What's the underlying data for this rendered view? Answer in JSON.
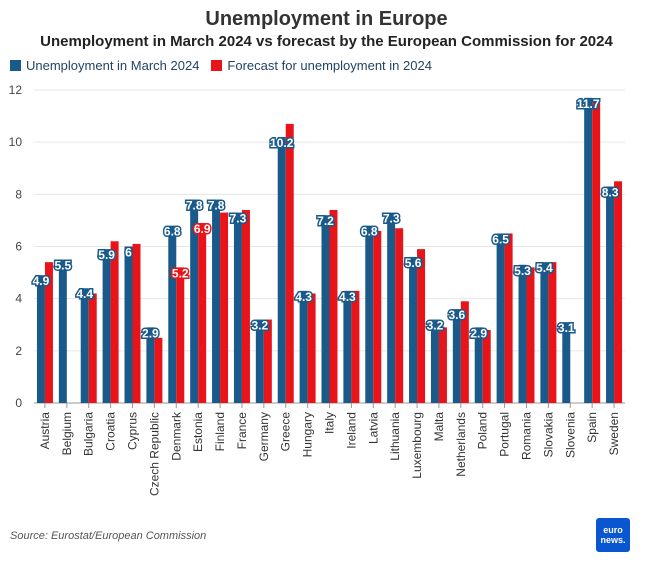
{
  "header": {
    "title": "Unemployment in Europe",
    "subtitle": "Unemployment in March 2024 vs forecast by the European Commission for 2024"
  },
  "source": "Source: Eurostat/European Commission",
  "logo": {
    "line1": "euro",
    "line2": "news."
  },
  "colors": {
    "march": "#1a5a8a",
    "forecast": "#e8141a",
    "grid": "#e6e6e6",
    "axis": "#999999"
  },
  "chart_data": {
    "type": "bar",
    "categories": [
      "Austria",
      "Belgium",
      "Bulgaria",
      "Croatia",
      "Cyprus",
      "Czech Republic",
      "Denmark",
      "Estonia",
      "Finland",
      "France",
      "Germany",
      "Greece",
      "Hungary",
      "Italy",
      "Ireland",
      "Latvia",
      "Lithuania",
      "Luxembourg",
      "Malta",
      "Netherlands",
      "Poland",
      "Portugal",
      "Romania",
      "Slovakia",
      "Slovenia",
      "Spain",
      "Sweden"
    ],
    "series": [
      {
        "name": "Unemployment in March 2024",
        "values": [
          4.9,
          5.5,
          4.4,
          5.9,
          6,
          2.9,
          6.8,
          7.8,
          7.8,
          7.3,
          3.2,
          10.2,
          4.3,
          7.2,
          4.3,
          6.8,
          7.3,
          5.6,
          3.2,
          3.6,
          2.9,
          6.5,
          5.3,
          5.4,
          3.1,
          11.7,
          8.3
        ]
      },
      {
        "name": "Forecast for unemployment in 2024",
        "values": [
          5.4,
          null,
          4.2,
          6.2,
          6.1,
          2.5,
          5.2,
          6.9,
          7.3,
          7.4,
          3.2,
          10.7,
          4.2,
          7.4,
          4.3,
          6.6,
          6.7,
          5.9,
          2.9,
          3.9,
          2.8,
          6.5,
          5.2,
          5.4,
          null,
          11.6,
          8.5
        ]
      }
    ],
    "labels": [
      {
        "index": 0,
        "series": 0,
        "text": "4.9"
      },
      {
        "index": 1,
        "series": 0,
        "text": "5.5"
      },
      {
        "index": 2,
        "series": 0,
        "text": "4.4"
      },
      {
        "index": 3,
        "series": 0,
        "text": "5.9"
      },
      {
        "index": 4,
        "series": 0,
        "text": "6"
      },
      {
        "index": 5,
        "series": 0,
        "text": "2.9"
      },
      {
        "index": 6,
        "series": 0,
        "text": "6.8"
      },
      {
        "index": 6,
        "series": 1,
        "text": "5.2"
      },
      {
        "index": 7,
        "series": 0,
        "text": "7.8"
      },
      {
        "index": 7,
        "series": 1,
        "text": "6.9"
      },
      {
        "index": 8,
        "series": 0,
        "text": "7.8"
      },
      {
        "index": 9,
        "series": 0,
        "text": "7.3"
      },
      {
        "index": 10,
        "series": 0,
        "text": "3.2"
      },
      {
        "index": 11,
        "series": 0,
        "text": "10.2"
      },
      {
        "index": 12,
        "series": 0,
        "text": "4.3"
      },
      {
        "index": 13,
        "series": 0,
        "text": "7.2"
      },
      {
        "index": 14,
        "series": 0,
        "text": "4.3"
      },
      {
        "index": 15,
        "series": 0,
        "text": "6.8"
      },
      {
        "index": 16,
        "series": 0,
        "text": "7.3"
      },
      {
        "index": 17,
        "series": 0,
        "text": "5.6"
      },
      {
        "index": 18,
        "series": 0,
        "text": "3.2"
      },
      {
        "index": 19,
        "series": 0,
        "text": "3.6"
      },
      {
        "index": 20,
        "series": 0,
        "text": "2.9"
      },
      {
        "index": 21,
        "series": 0,
        "text": "6.5"
      },
      {
        "index": 22,
        "series": 0,
        "text": "5.3"
      },
      {
        "index": 23,
        "series": 0,
        "text": "5.4"
      },
      {
        "index": 24,
        "series": 0,
        "text": "3.1"
      },
      {
        "index": 25,
        "series": 0,
        "text": "11.7"
      },
      {
        "index": 26,
        "series": 0,
        "text": "8.3"
      }
    ],
    "yticks": [
      0,
      2,
      4,
      6,
      8,
      10,
      12
    ],
    "ylim": [
      0,
      12
    ],
    "grid": true,
    "legend": "top-left"
  }
}
